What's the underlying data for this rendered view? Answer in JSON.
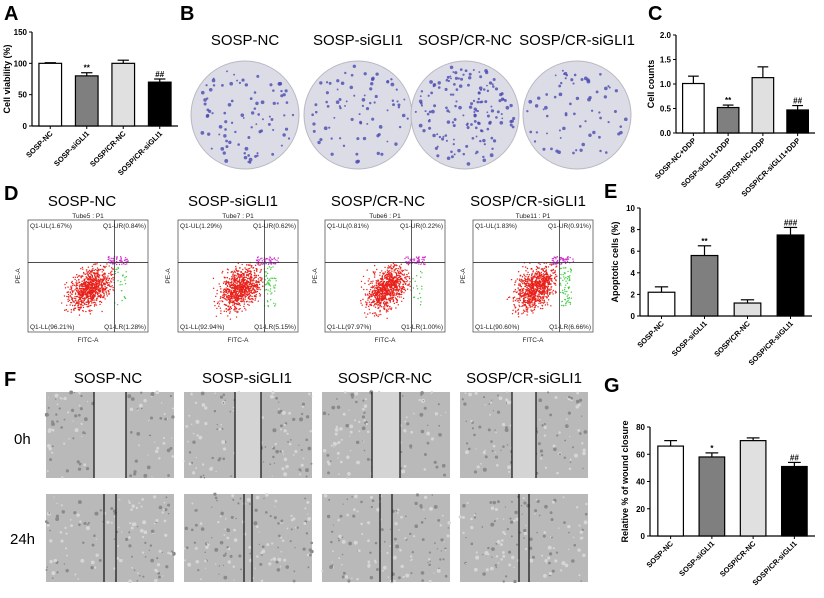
{
  "panel_labels": [
    "A",
    "B",
    "C",
    "D",
    "E",
    "F",
    "G"
  ],
  "groups": [
    "SOSP-NC",
    "SOSP-siGLI1",
    "SOSP/CR-NC",
    "SOSP/CR-siGLI1"
  ],
  "wound_rows": [
    "0h",
    "24h"
  ],
  "flow": [
    {
      "tube": "Tube5 : P1",
      "ul": "Q1-UL(1.67%)",
      "ur": "Q1-UR(0.84%)",
      "ll": "Q1-LL(96.21%)",
      "lr": "Q1-LR(1.28%)"
    },
    {
      "tube": "Tube7 : P1",
      "ul": "Q1-UL(1.29%)",
      "ur": "Q1-UR(0.62%)",
      "ll": "Q1-LL(92.94%)",
      "lr": "Q1-LR(5.15%)"
    },
    {
      "tube": "Tube6 : P1",
      "ul": "Q1-UL(0.81%)",
      "ur": "Q1-UR(0.22%)",
      "ll": "Q1-LL(97.97%)",
      "lr": "Q1-LR(1.00%)"
    },
    {
      "tube": "Tube11 : P1",
      "ul": "Q1-UL(1.83%)",
      "ur": "Q1-UR(0.91%)",
      "ll": "Q1-LL(90.60%)",
      "lr": "Q1-LR(6.66%)"
    }
  ],
  "flow_axes": {
    "x": "FITC-A",
    "y": "PE-A"
  },
  "colors": {
    "bars": [
      "#ffffff",
      "#7f7f7f",
      "#e0e0e0",
      "#000000"
    ],
    "plate": "#dcdce6",
    "colony": "#4a4ab0",
    "ll": "#e8201a",
    "ur": "#cc33cc",
    "lr": "#44cc44"
  },
  "chart_data": [
    {
      "panel": "A",
      "type": "bar",
      "title": "",
      "xlabel": "",
      "ylabel": "Cell viability (%)",
      "categories": [
        "SOSP-NC",
        "SOSP-siGLI1",
        "SOSP/CR-NC",
        "SOSP/CR-siGLI1"
      ],
      "values": [
        100,
        80,
        100,
        70
      ],
      "errors": [
        1,
        5,
        5,
        5
      ],
      "annotations": [
        "",
        "**",
        "",
        "##"
      ],
      "ylim": [
        0,
        150
      ],
      "ticks": [
        0,
        50,
        100,
        150
      ],
      "tick_decimals": 0,
      "grid": false
    },
    {
      "panel": "C",
      "type": "bar",
      "title": "",
      "xlabel": "",
      "ylabel": "Cell counts",
      "categories": [
        "SOSP-NC+DDP",
        "SOSP-siGLI1+DDP",
        "SOSP/CR-NC+DDP",
        "SOSP/CR-siGLI1+DDP"
      ],
      "values": [
        1.01,
        0.52,
        1.13,
        0.47
      ],
      "errors": [
        0.15,
        0.05,
        0.22,
        0.09
      ],
      "annotations": [
        "",
        "**",
        "",
        "##"
      ],
      "ylim": [
        0,
        2.0
      ],
      "ticks": [
        0,
        0.5,
        1.0,
        1.5,
        2.0
      ],
      "tick_decimals": 1,
      "grid": false
    },
    {
      "panel": "E",
      "type": "bar",
      "title": "",
      "xlabel": "",
      "ylabel": "Apoptotic cells (%)",
      "categories": [
        "SOSP-NC",
        "SOSP-siGLI1",
        "SOSP/CR-NC",
        "SOSP/CR-siGLI1"
      ],
      "values": [
        2.2,
        5.6,
        1.2,
        7.5
      ],
      "errors": [
        0.5,
        0.9,
        0.3,
        0.7
      ],
      "annotations": [
        "",
        "**",
        "",
        "###"
      ],
      "ylim": [
        0,
        10
      ],
      "ticks": [
        0,
        2,
        4,
        6,
        8,
        10
      ],
      "tick_decimals": 0,
      "grid": false
    },
    {
      "panel": "G",
      "type": "bar",
      "title": "",
      "xlabel": "",
      "ylabel": "Relative  %  of wound closure",
      "categories": [
        "SOSP-NC",
        "SOSP-siGLI1",
        "SOSP/CR-NC",
        "SOSP/CR-siGLI1"
      ],
      "values": [
        66,
        58,
        70,
        51
      ],
      "errors": [
        4,
        3,
        2,
        3
      ],
      "annotations": [
        "",
        "*",
        "",
        "##"
      ],
      "ylim": [
        0,
        80
      ],
      "ticks": [
        0,
        20,
        40,
        60,
        80
      ],
      "tick_decimals": 0,
      "grid": false
    }
  ]
}
